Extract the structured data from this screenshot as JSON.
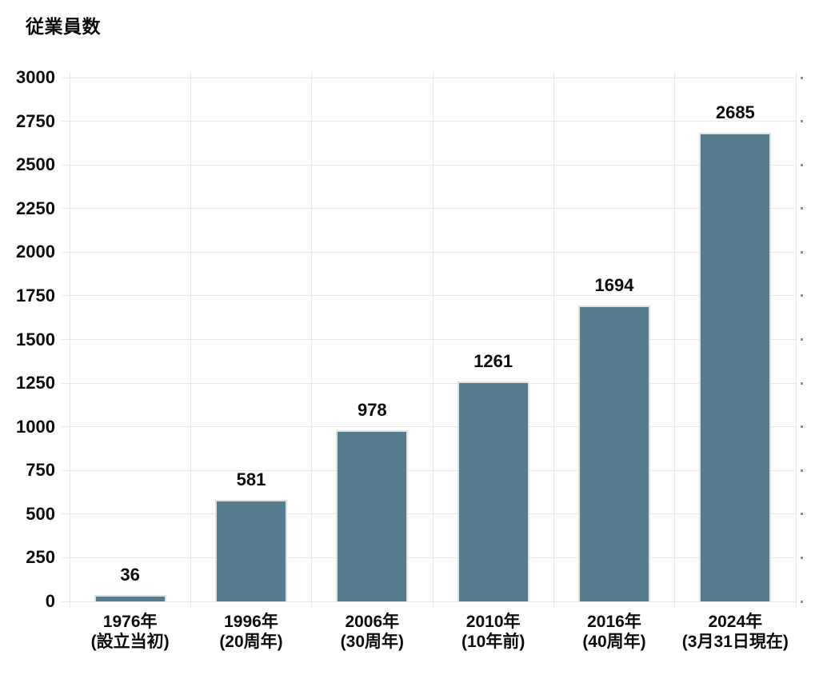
{
  "chart_data": {
    "type": "bar",
    "title": "従業員数",
    "categories": [
      "1976年\n(設立当初)",
      "1996年\n(20周年)",
      "2006年\n(30周年)",
      "2010年\n(10年前)",
      "2016年\n(40周年)",
      "2024年\n(3月31日現在)"
    ],
    "values": [
      36,
      581,
      978,
      1261,
      1694,
      2685
    ],
    "value_labels": [
      "36",
      "581",
      "978",
      "1261",
      "1694",
      "2685"
    ],
    "xlabel": "",
    "ylabel": "",
    "ylim": [
      0,
      3000
    ],
    "yticks": [
      0,
      250,
      500,
      750,
      1000,
      1250,
      1500,
      1750,
      2000,
      2250,
      2500,
      2750,
      3000
    ],
    "grid": true,
    "legend": false,
    "bar_color": "#567c8d"
  },
  "colors": {
    "bar": "#567c8d",
    "bar_border": "#dde1e4",
    "grid": "#e9e9e9",
    "tick_dot": "#8f8f8f",
    "text": "#0d0d0d",
    "background": "#ffffff"
  }
}
